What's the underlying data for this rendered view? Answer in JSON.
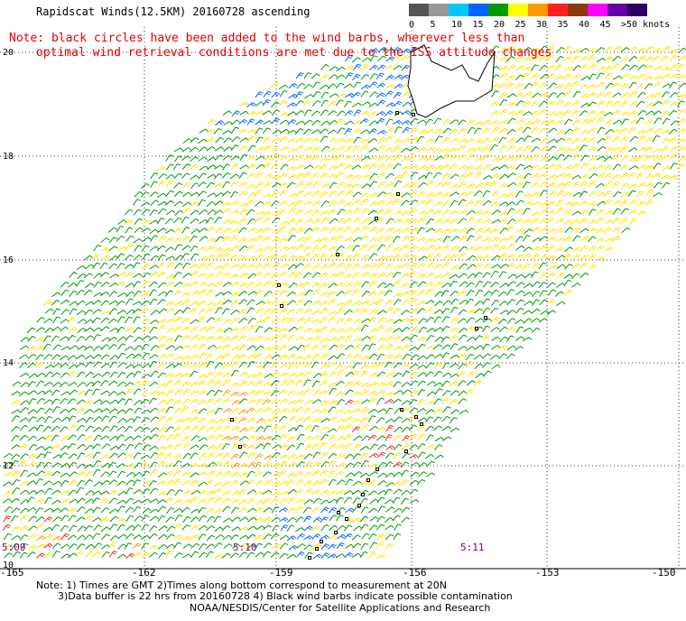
{
  "title": "Rapidscat Winds(12.5KM) 20160728 ascending",
  "note_line1": "Note: black circles have been added to the wind barbs, wherever less than",
  "note_line2": "optimal wind retrieval conditions are met due to the ISS attitude changes",
  "legend": {
    "labels": [
      "0",
      "5",
      "10",
      "15",
      "20",
      "25",
      "30",
      "35",
      "40",
      "45",
      ">50 knots"
    ],
    "colors": [
      "#555555",
      "#999999",
      "#00c8ff",
      "#0064ff",
      "#009a00",
      "#ffff00",
      "#ff9900",
      "#ff2020",
      "#8b3a0a",
      "#ff00ff",
      "#6600aa",
      "#2a0060"
    ]
  },
  "lat_labels": [
    "20",
    "18",
    "16",
    "14",
    "12",
    "10"
  ],
  "lon_labels": [
    "-165",
    "-162",
    "-159",
    "-156",
    "-153",
    "-150"
  ],
  "time_labels": [
    "5:09",
    "5:10",
    "5:11"
  ],
  "footer": {
    "line1": "Note: 1) Times are GMT 2)Times along bottom correspond to measurement at 20N",
    "line2": "3)Data buffer is 22 hrs from 20160728 4) Black wind barbs indicate possible contamination",
    "line3": "NOAA/NESDIS/Center for Satellite Applications and Research"
  }
}
